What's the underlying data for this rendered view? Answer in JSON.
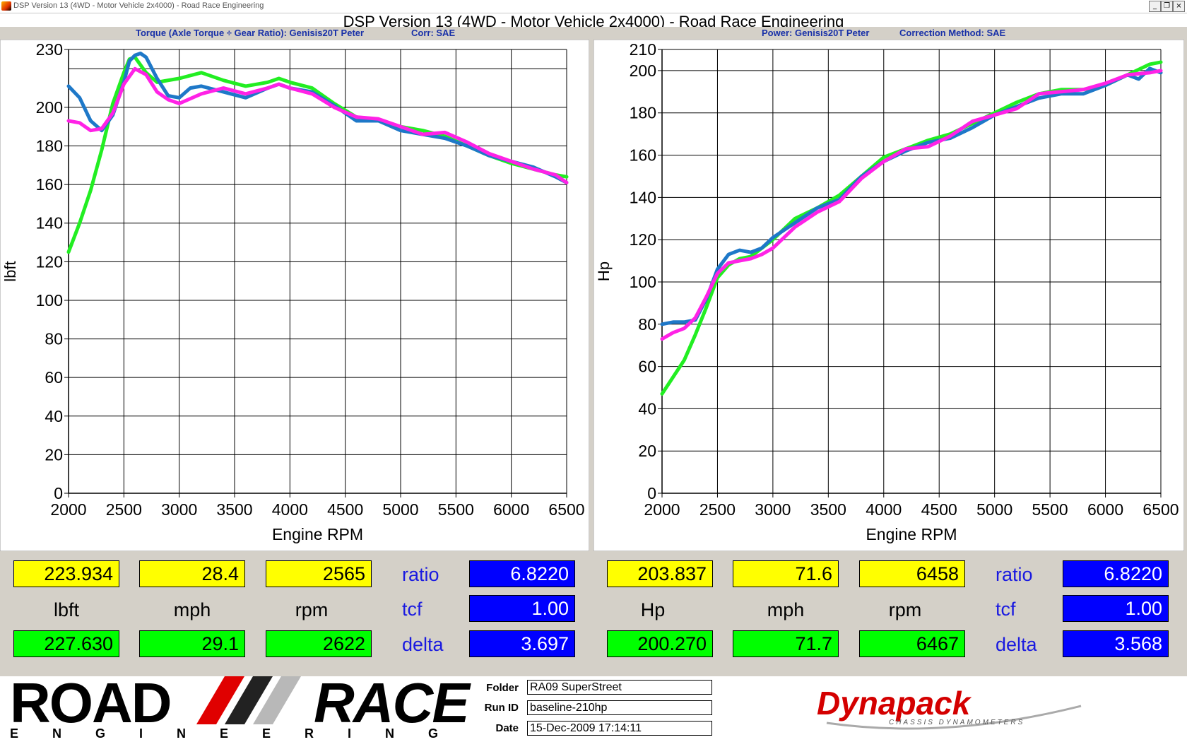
{
  "window": {
    "title": "DSP Version 13 (4WD - Motor Vehicle 2x4000) - Road Race Engineering",
    "heading": "DSP Version 13 (4WD - Motor Vehicle 2x4000) - Road Race Engineering",
    "buttons": {
      "minimize": "_",
      "restore": "❐",
      "close": "×"
    }
  },
  "left_header": {
    "title": "Torque (Axle Torque ÷ Gear Ratio): Genisis20T Peter",
    "corr": "Corr: SAE"
  },
  "right_header": {
    "title": "Power: Genisis20T Peter",
    "corr": "Correction Method: SAE"
  },
  "series_colors": {
    "green": "#22ee22",
    "blue": "#1e78c8",
    "magenta": "#ff22e6"
  },
  "chart_data": [
    {
      "type": "line",
      "title": "Torque (Axle Torque ÷ Gear Ratio): Genisis20T Peter",
      "xlabel": "Engine RPM",
      "ylabel": "lbft",
      "xlim": [
        2000,
        6500
      ],
      "ylim": [
        0,
        230
      ],
      "xticks": [
        "2000",
        "2500",
        "3000",
        "3500",
        "4000",
        "4500",
        "5000",
        "5500",
        "6000",
        "6500"
      ],
      "yticks": [
        "0",
        "20",
        "40",
        "60",
        "80",
        "100",
        "120",
        "140",
        "160",
        "180",
        "200",
        "230"
      ],
      "grid": true,
      "reference_line": 220,
      "series": [
        {
          "color": "green",
          "points": [
            [
              2000,
              125
            ],
            [
              2100,
              140
            ],
            [
              2200,
              157
            ],
            [
              2300,
              178
            ],
            [
              2400,
              202
            ],
            [
              2500,
              218
            ],
            [
              2550,
              225
            ],
            [
              2600,
              226
            ],
            [
              2700,
              218
            ],
            [
              2800,
              213
            ],
            [
              3000,
              215
            ],
            [
              3200,
              218
            ],
            [
              3400,
              214
            ],
            [
              3600,
              211
            ],
            [
              3800,
              213
            ],
            [
              3900,
              215
            ],
            [
              4000,
              213
            ],
            [
              4200,
              210
            ],
            [
              4400,
              202
            ],
            [
              4600,
              195
            ],
            [
              4800,
              193
            ],
            [
              5000,
              190
            ],
            [
              5200,
              188
            ],
            [
              5400,
              185
            ],
            [
              5600,
              180
            ],
            [
              5800,
              175
            ],
            [
              6000,
              171
            ],
            [
              6200,
              168
            ],
            [
              6400,
              165
            ],
            [
              6500,
              164
            ]
          ]
        },
        {
          "color": "blue",
          "points": [
            [
              2000,
              211
            ],
            [
              2100,
              205
            ],
            [
              2200,
              193
            ],
            [
              2300,
              188
            ],
            [
              2400,
              196
            ],
            [
              2500,
              213
            ],
            [
              2550,
              224
            ],
            [
              2600,
              227
            ],
            [
              2650,
              228
            ],
            [
              2700,
              226
            ],
            [
              2800,
              215
            ],
            [
              2900,
              206
            ],
            [
              3000,
              205
            ],
            [
              3100,
              210
            ],
            [
              3200,
              211
            ],
            [
              3400,
              208
            ],
            [
              3600,
              205
            ],
            [
              3800,
              210
            ],
            [
              3900,
              212
            ],
            [
              4000,
              210
            ],
            [
              4200,
              208
            ],
            [
              4400,
              201
            ],
            [
              4600,
              193
            ],
            [
              4800,
              193
            ],
            [
              5000,
              188
            ],
            [
              5200,
              186
            ],
            [
              5400,
              184
            ],
            [
              5600,
              180
            ],
            [
              5800,
              175
            ],
            [
              6000,
              172
            ],
            [
              6200,
              169
            ],
            [
              6400,
              164
            ],
            [
              6500,
              161
            ]
          ]
        },
        {
          "color": "magenta",
          "points": [
            [
              2000,
              193
            ],
            [
              2100,
              192
            ],
            [
              2200,
              188
            ],
            [
              2300,
              189
            ],
            [
              2400,
              197
            ],
            [
              2500,
              212
            ],
            [
              2600,
              220
            ],
            [
              2700,
              217
            ],
            [
              2800,
              208
            ],
            [
              2900,
              204
            ],
            [
              3000,
              202
            ],
            [
              3200,
              207
            ],
            [
              3400,
              210
            ],
            [
              3600,
              207
            ],
            [
              3800,
              210
            ],
            [
              3900,
              212
            ],
            [
              4000,
              210
            ],
            [
              4200,
              207
            ],
            [
              4400,
              200
            ],
            [
              4600,
              195
            ],
            [
              4800,
              194
            ],
            [
              5000,
              190
            ],
            [
              5200,
              186
            ],
            [
              5400,
              187
            ],
            [
              5600,
              182
            ],
            [
              5800,
              176
            ],
            [
              6000,
              172
            ],
            [
              6200,
              168
            ],
            [
              6400,
              165
            ],
            [
              6500,
              161
            ]
          ]
        }
      ]
    },
    {
      "type": "line",
      "title": "Power: Genisis20T Peter",
      "xlabel": "Engine RPM",
      "ylabel": "Hp",
      "xlim": [
        2000,
        6500
      ],
      "ylim": [
        0,
        210
      ],
      "xticks": [
        "2000",
        "2500",
        "3000",
        "3500",
        "4000",
        "4500",
        "5000",
        "5500",
        "6000",
        "6500"
      ],
      "yticks": [
        "0",
        "20",
        "40",
        "60",
        "80",
        "100",
        "120",
        "140",
        "160",
        "180",
        "200",
        "210"
      ],
      "grid": true,
      "series": [
        {
          "color": "green",
          "points": [
            [
              2000,
              47
            ],
            [
              2100,
              55
            ],
            [
              2200,
              63
            ],
            [
              2300,
              75
            ],
            [
              2400,
              88
            ],
            [
              2500,
              102
            ],
            [
              2600,
              108
            ],
            [
              2700,
              111
            ],
            [
              2800,
              112
            ],
            [
              2900,
              116
            ],
            [
              3000,
              120
            ],
            [
              3200,
              130
            ],
            [
              3400,
              135
            ],
            [
              3600,
              141
            ],
            [
              3800,
              150
            ],
            [
              4000,
              159
            ],
            [
              4200,
              163
            ],
            [
              4400,
              167
            ],
            [
              4600,
              170
            ],
            [
              4800,
              175
            ],
            [
              5000,
              180
            ],
            [
              5200,
              185
            ],
            [
              5400,
              189
            ],
            [
              5600,
              191
            ],
            [
              5800,
              191
            ],
            [
              6000,
              193
            ],
            [
              6200,
              198
            ],
            [
              6400,
              203
            ],
            [
              6500,
              204
            ]
          ]
        },
        {
          "color": "blue",
          "points": [
            [
              2000,
              80
            ],
            [
              2100,
              81
            ],
            [
              2200,
              81
            ],
            [
              2300,
              82
            ],
            [
              2400,
              92
            ],
            [
              2500,
              106
            ],
            [
              2600,
              113
            ],
            [
              2700,
              115
            ],
            [
              2800,
              114
            ],
            [
              2900,
              116
            ],
            [
              3000,
              121
            ],
            [
              3200,
              128
            ],
            [
              3400,
              135
            ],
            [
              3600,
              139
            ],
            [
              3800,
              150
            ],
            [
              4000,
              157
            ],
            [
              4200,
              162
            ],
            [
              4400,
              166
            ],
            [
              4600,
              168
            ],
            [
              4800,
              173
            ],
            [
              5000,
              179
            ],
            [
              5200,
              183
            ],
            [
              5400,
              187
            ],
            [
              5600,
              189
            ],
            [
              5800,
              189
            ],
            [
              6000,
              193
            ],
            [
              6200,
              198
            ],
            [
              6300,
              196
            ],
            [
              6400,
              201
            ],
            [
              6500,
              199
            ]
          ]
        },
        {
          "color": "magenta",
          "points": [
            [
              2000,
              73
            ],
            [
              2100,
              76
            ],
            [
              2200,
              78
            ],
            [
              2300,
              83
            ],
            [
              2400,
              93
            ],
            [
              2500,
              104
            ],
            [
              2600,
              109
            ],
            [
              2700,
              110
            ],
            [
              2800,
              111
            ],
            [
              2900,
              113
            ],
            [
              3000,
              116
            ],
            [
              3200,
              126
            ],
            [
              3400,
              133
            ],
            [
              3600,
              138
            ],
            [
              3800,
              149
            ],
            [
              4000,
              157
            ],
            [
              4200,
              163
            ],
            [
              4400,
              164
            ],
            [
              4600,
              169
            ],
            [
              4800,
              176
            ],
            [
              5000,
              179
            ],
            [
              5200,
              182
            ],
            [
              5400,
              189
            ],
            [
              5600,
              190
            ],
            [
              5800,
              191
            ],
            [
              6000,
              194
            ],
            [
              6200,
              198
            ],
            [
              6400,
              199
            ],
            [
              6500,
              200
            ]
          ]
        }
      ]
    }
  ],
  "left_readout": {
    "y1": "223.934",
    "y2": "28.4",
    "y3": "2565",
    "u1": "lbft",
    "u2": "mph",
    "u3": "rpm",
    "g1": "227.630",
    "g2": "29.1",
    "g3": "2622",
    "ratio_label": "ratio",
    "ratio": "6.8220",
    "tcf_label": "tcf",
    "tcf": "1.00",
    "delta_label": "delta",
    "delta": "3.697"
  },
  "right_readout": {
    "y1": "203.837",
    "y2": "71.6",
    "y3": "6458",
    "u1": "Hp",
    "u2": "mph",
    "u3": "rpm",
    "g1": "200.270",
    "g2": "71.7",
    "g3": "6467",
    "ratio_label": "ratio",
    "ratio": "6.8220",
    "tcf_label": "tcf",
    "tcf": "1.00",
    "delta_label": "delta",
    "delta": "3.568"
  },
  "footer": {
    "logo_road": "ROAD",
    "logo_race": "RACE",
    "logo_eng": "ENGINEERING",
    "folder_label": "Folder",
    "folder": "RA09 SuperStreet",
    "runid_label": "Run ID",
    "runid": "baseline-210hp",
    "date_label": "Date",
    "date": "15-Dec-2009 17:14:11",
    "dyna_brand": "Dynapack",
    "dyna_sub": "CHASSIS DYNAMOMETERS"
  }
}
